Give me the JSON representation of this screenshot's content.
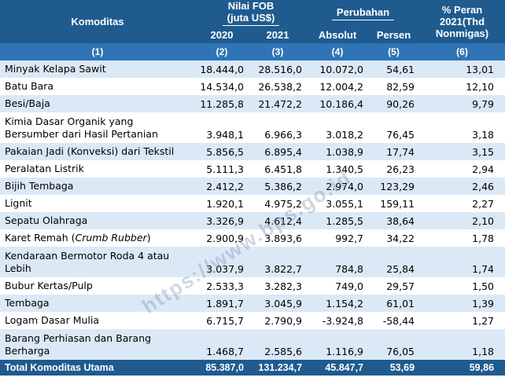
{
  "header": {
    "komoditas": "Komoditas",
    "nilai_fob": "Nilai FOB",
    "nilai_fob_unit": "(juta US$)",
    "perubahan": "Perubahan",
    "peran_line1": "% Peran",
    "peran_line2": "2021(Thd",
    "peran_line3": "Nonmigas)",
    "y2020": "2020",
    "y2021": "2021",
    "absolut": "Absolut",
    "persen": "Persen",
    "n1": "(1)",
    "n2": "(2)",
    "n3": "(3)",
    "n4": "(4)",
    "n5": "(5)",
    "n6": "(6)"
  },
  "rows": [
    {
      "name": "Minyak Kelapa Sawit",
      "v2020": "18.444,0",
      "v2021": "28.516,0",
      "abs": "10.072,0",
      "pct": "54,61",
      "share": "13,01"
    },
    {
      "name": "Batu Bara",
      "v2020": "14.534,0",
      "v2021": "26.538,2",
      "abs": "12.004,2",
      "pct": "82,59",
      "share": "12,10"
    },
    {
      "name": "Besi/Baja",
      "v2020": "11.285,8",
      "v2021": "21.472,2",
      "abs": "10.186,4",
      "pct": "90,26",
      "share": "9,79"
    },
    {
      "name": "Kimia Dasar Organik yang Bersumber dari Hasil Pertanian",
      "v2020": "3.948,1",
      "v2021": "6.966,3",
      "abs": "3.018,2",
      "pct": "76,45",
      "share": "3,18"
    },
    {
      "name": "Pakaian Jadi (Konveksi) dari Tekstil",
      "v2020": "5.856,5",
      "v2021": "6.895,4",
      "abs": "1.038,9",
      "pct": "17,74",
      "share": "3,15"
    },
    {
      "name": "Peralatan Listrik",
      "v2020": "5.111,3",
      "v2021": "6.451,8",
      "abs": "1.340,5",
      "pct": "26,23",
      "share": "2,94"
    },
    {
      "name": "Bijih Tembaga",
      "v2020": "2.412,2",
      "v2021": "5.386,2",
      "abs": "2.974,0",
      "pct": "123,29",
      "share": "2,46"
    },
    {
      "name": "Lignit",
      "v2020": "1.920,1",
      "v2021": "4.975,2",
      "abs": "3.055,1",
      "pct": "159,11",
      "share": "2,27"
    },
    {
      "name": "Sepatu Olahraga",
      "v2020": "3.326,9",
      "v2021": "4.612,4",
      "abs": "1.285,5",
      "pct": "38,64",
      "share": "2,10"
    },
    {
      "name": "Karet Remah (",
      "name_italic": "Crumb Rubber",
      "name_after": ")",
      "v2020": "2.900,9",
      "v2021": "3.893,6",
      "abs": "992,7",
      "pct": "34,22",
      "share": "1,78"
    },
    {
      "name": "Kendaraan Bermotor Roda 4 atau Lebih",
      "v2020": "3.037,9",
      "v2021": "3.822,7",
      "abs": "784,8",
      "pct": "25,84",
      "share": "1,74"
    },
    {
      "name": "Bubur Kertas/Pulp",
      "v2020": "2.533,3",
      "v2021": "3.282,3",
      "abs": "749,0",
      "pct": "29,57",
      "share": "1,50"
    },
    {
      "name": "Tembaga",
      "v2020": "1.891,7",
      "v2021": "3.045,9",
      "abs": "1.154,2",
      "pct": "61,01",
      "share": "1,39"
    },
    {
      "name": "Logam Dasar Mulia",
      "v2020": "6.715,7",
      "v2021": "2.790,9",
      "abs": "-3.924,8",
      "pct": "-58,44",
      "share": "1,27"
    },
    {
      "name": "Barang Perhiasan dan Barang Berharga",
      "v2020": "1.468,7",
      "v2021": "2.585,6",
      "abs": "1.116,9",
      "pct": "76,05",
      "share": "1,18"
    }
  ],
  "total": {
    "name": "Total Komoditas Utama",
    "v2020": "85.387,0",
    "v2021": "131.234,7",
    "abs": "45.847,7",
    "pct": "53,69",
    "share": "59,86"
  },
  "watermark": "https://www.bps.go.id"
}
